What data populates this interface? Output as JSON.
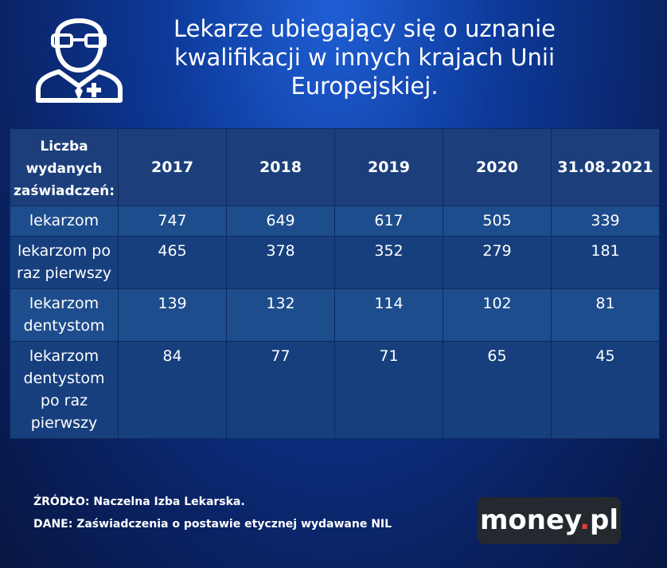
{
  "title": {
    "line1": "Lekarze ubiegający się o uznanie",
    "line2": "kwalifikacji w innych krajach Unii",
    "line3": "Europejskiej."
  },
  "icon": "doctor-icon",
  "chart_data": {
    "type": "table",
    "row_header": "Liczba wydanych zaświadczeń:",
    "columns": [
      "2017",
      "2018",
      "2019",
      "2020",
      "31.08.2021"
    ],
    "rows": [
      {
        "label": "lekarzom",
        "values": [
          747,
          649,
          617,
          505,
          339
        ]
      },
      {
        "label": "lekarzom po raz pierwszy",
        "values": [
          465,
          378,
          352,
          279,
          181
        ]
      },
      {
        "label": "lekarzom dentystom",
        "values": [
          139,
          132,
          114,
          102,
          81
        ]
      },
      {
        "label": "lekarzom dentystom po raz pierwszy",
        "values": [
          84,
          77,
          71,
          65,
          45
        ]
      }
    ]
  },
  "footer": {
    "source": "ŹRÓDŁO: Naczelna Izba Lekarska.",
    "data": "DANE: Zaświadczenia o postawie etycznej wydawane NIL"
  },
  "logo": {
    "main": "money",
    "dot": ".",
    "suffix": "pl"
  },
  "colors": {
    "background": "#0d3a9a",
    "table_dark": "#173f7d",
    "table_light": "#1e4d8d",
    "logo_bg": "#24282f",
    "logo_dot": "#e43b3b"
  }
}
